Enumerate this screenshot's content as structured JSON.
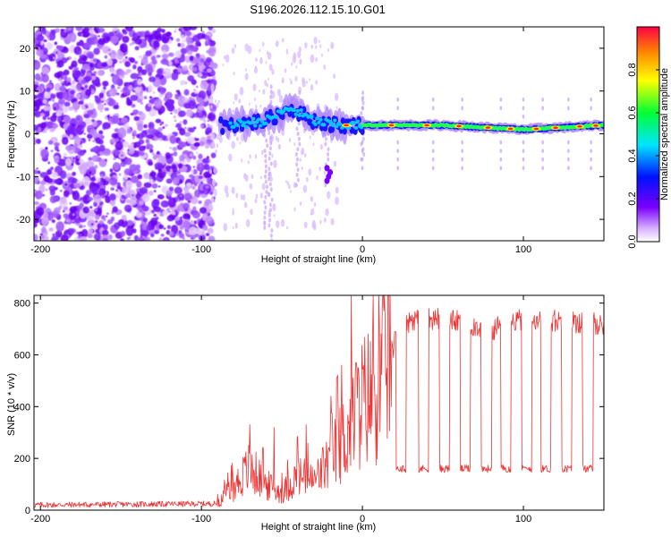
{
  "title": "S196.2026.112.15.10.G01",
  "chart_data": [
    {
      "type": "heatmap",
      "name": "spectrogram",
      "xlabel": "Height of straight line (km)",
      "ylabel": "Frequency (Hz)",
      "xlim": [
        -204,
        150
      ],
      "ylim": [
        -25,
        25
      ],
      "xticks": [
        -200,
        -100,
        0,
        100
      ],
      "yticks": [
        -20,
        -10,
        0,
        10,
        20
      ],
      "colorbar": {
        "label": "Normalized spectral amplitude",
        "range": [
          0,
          1
        ],
        "ticks": [
          0.0,
          0.2,
          0.4,
          0.6,
          0.8
        ]
      },
      "tone_track": [
        {
          "x": -85,
          "f": 2
        },
        {
          "x": -60,
          "f": 3
        },
        {
          "x": -45,
          "f": 6
        },
        {
          "x": -30,
          "f": 3
        },
        {
          "x": -15,
          "f": 2
        },
        {
          "x": 0,
          "f": 2
        },
        {
          "x": 50,
          "f": 2
        },
        {
          "x": 100,
          "f": 1
        },
        {
          "x": 150,
          "f": 2
        }
      ]
    },
    {
      "type": "line",
      "name": "snr",
      "xlabel": "Height of straight line (km)",
      "ylabel": "SNR (10 * v/v)",
      "xlim": [
        -204,
        150
      ],
      "ylim": [
        0,
        830
      ],
      "xticks": [
        -200,
        -100,
        0,
        100
      ],
      "yticks": [
        0,
        200,
        400,
        600,
        800
      ],
      "color": "#ee3333",
      "envelope": [
        {
          "x": -204,
          "y": 20
        },
        {
          "x": -90,
          "y": 25
        },
        {
          "x": -80,
          "y": 80
        },
        {
          "x": -70,
          "y": 150
        },
        {
          "x": -60,
          "y": 90
        },
        {
          "x": -50,
          "y": 60
        },
        {
          "x": -40,
          "y": 120
        },
        {
          "x": -30,
          "y": 100
        },
        {
          "x": -20,
          "y": 180
        },
        {
          "x": -10,
          "y": 260
        },
        {
          "x": 0,
          "y": 380
        },
        {
          "x": 10,
          "y": 430
        },
        {
          "x": 20,
          "y": 650
        },
        {
          "x": 30,
          "y": 740
        },
        {
          "x": 50,
          "y": 740
        },
        {
          "x": 80,
          "y": 700
        },
        {
          "x": 100,
          "y": 740
        },
        {
          "x": 150,
          "y": 720
        }
      ],
      "dropouts_x": [
        24,
        38,
        51,
        64,
        77,
        89,
        102,
        114,
        127,
        140
      ],
      "dropout_level": 160,
      "spikes": [
        {
          "x": -70,
          "y": 330
        },
        {
          "x": -55,
          "y": 320
        },
        {
          "x": -35,
          "y": 330
        },
        {
          "x": -19,
          "y": 375
        },
        {
          "x": -13,
          "y": 560
        },
        {
          "x": -7,
          "y": 830
        },
        {
          "x": -4,
          "y": 570
        }
      ]
    }
  ]
}
